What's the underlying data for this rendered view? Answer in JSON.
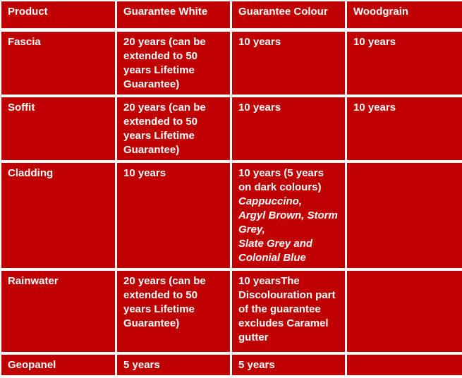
{
  "colors": {
    "cell_red": "#C00000",
    "border_white": "#FFFFFF",
    "text_white": "#FFFFFF",
    "squiggle_dark_red": "#8B2020",
    "page_background": "#EDEDED"
  },
  "table": {
    "headers": [
      {
        "id": "product",
        "label": "Product"
      },
      {
        "id": "guarantee-white",
        "label": "Guarantee White"
      },
      {
        "id": "guarantee-colour",
        "label": "Guarantee Colour"
      },
      {
        "id": "woodgrain",
        "label": "Woodgrain"
      }
    ],
    "rows": [
      {
        "name": "fascia",
        "cells": [
          [
            "Fascia"
          ],
          [
            "20 years (can be",
            "extended to 50",
            "years Lifetime",
            "Guarantee)"
          ],
          [
            "10 years"
          ],
          [
            "10 years"
          ]
        ]
      },
      {
        "name": "soffit",
        "cells": [
          [
            "Soffit"
          ],
          [
            "20 years (can be",
            "extended to 50",
            "years Lifetime",
            "Guarantee)"
          ],
          [
            "10 years"
          ],
          [
            "10 years"
          ]
        ]
      },
      {
        "name": "cladding",
        "cells": [
          [
            "Cladding"
          ],
          [
            "10 years"
          ],
          [
            "10 years (5 years",
            "on dark colours)",
            {
              "t": "Cappuccino,",
              "s": "i"
            },
            {
              "t": "Argyl Brown, Storm",
              "s": "i"
            },
            {
              "t": "Grey,",
              "s": "i"
            },
            {
              "t": "Slate Grey and",
              "s": "i"
            },
            {
              "t": "Colonial Blue",
              "s": "i"
            }
          ],
          []
        ]
      },
      {
        "name": "rainwater",
        "cells": [
          [
            "Rainwater"
          ],
          [
            "20 years (can be",
            "extended to 50",
            "years Lifetime",
            "Guarantee)"
          ],
          [
            [
              {
                "t": "10 "
              },
              {
                "t": "yearsThe",
                "s": "w"
              }
            ],
            "Discolouration part",
            "of the guarantee",
            "excludes Caramel",
            "gutter"
          ],
          []
        ]
      },
      {
        "name": "geopanel",
        "cells": [
          [
            "Geopanel"
          ],
          [
            "5 years"
          ],
          [
            "5 years"
          ],
          []
        ]
      }
    ]
  }
}
